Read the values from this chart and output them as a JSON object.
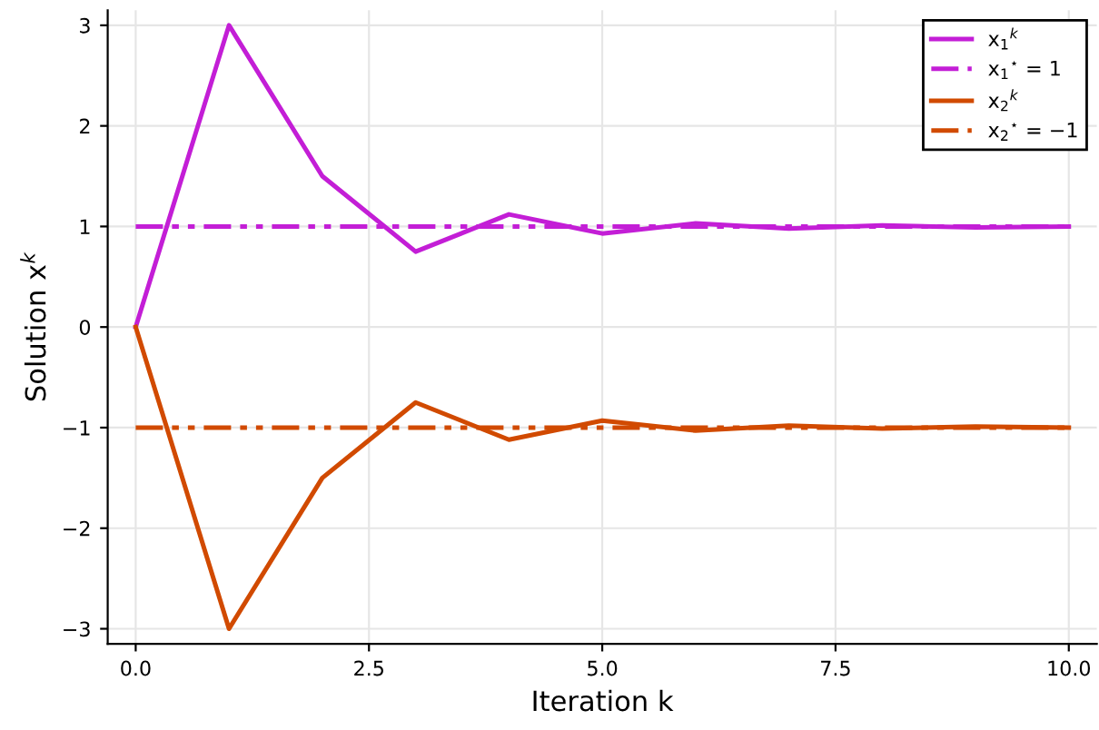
{
  "chart_data": {
    "type": "line",
    "xlabel": "Iteration k",
    "ylabel": "Solution x$^{k}$",
    "x": [
      0,
      1,
      2,
      3,
      4,
      5,
      6,
      7,
      8,
      9,
      10
    ],
    "series": [
      {
        "name": "x$_{1}$$^{k}$",
        "color": "#c31ed6",
        "values": [
          0,
          3,
          1.5,
          0.75,
          1.12,
          0.93,
          1.03,
          0.98,
          1.01,
          0.99,
          1.0
        ]
      },
      {
        "name": "x$_{1}$$^{⋆}$ = 1",
        "color": "#c31ed6",
        "values": [
          1,
          1,
          1,
          1,
          1,
          1,
          1,
          1,
          1,
          1,
          1
        ],
        "line_style": "dashed"
      },
      {
        "name": "x$_{2}$$^{k}$",
        "color": "#d14a00",
        "values": [
          0,
          -3,
          -1.5,
          -0.75,
          -1.12,
          -0.93,
          -1.03,
          -0.98,
          -1.01,
          -0.99,
          -1.0
        ]
      },
      {
        "name": "x$_{2}$$^{⋆}$ = −1",
        "color": "#d14a00",
        "values": [
          -1,
          -1,
          -1,
          -1,
          -1,
          -1,
          -1,
          -1,
          -1,
          -1,
          -1
        ],
        "line_style": "dashed"
      }
    ],
    "xlim": [
      -0.3,
      10.3
    ],
    "ylim": [
      -3.15,
      3.15
    ],
    "xticks": [
      {
        "value": 0,
        "label": "0.0"
      },
      2.5,
      {
        "value": 5,
        "label": "5.0"
      },
      7.5,
      {
        "value": 10,
        "label": "10.0"
      }
    ],
    "yticks": [
      {
        "value": -3,
        "label": "−3"
      },
      {
        "value": -2,
        "label": "−2"
      },
      {
        "value": -1,
        "label": "−1"
      },
      0,
      1,
      2,
      3
    ],
    "grid": true,
    "legend": "top right",
    "line_style": "solid"
  }
}
